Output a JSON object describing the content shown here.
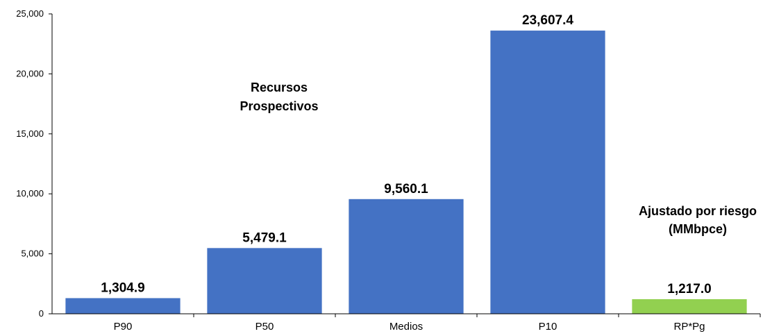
{
  "chart_data": {
    "type": "bar",
    "categories": [
      "P90",
      "P50",
      "Medios",
      "P10",
      "RP*Pg"
    ],
    "values": [
      1304.9,
      5479.1,
      9560.1,
      23607.4,
      1217.0
    ],
    "value_labels": [
      "1,304.9",
      "5,479.1",
      "9,560.1",
      "23,607.4",
      "1,217.0"
    ],
    "colors": [
      "#4472C4",
      "#4472C4",
      "#4472C4",
      "#4472C4",
      "#92D050"
    ],
    "ylim": [
      0,
      25000
    ],
    "yticks": [
      0,
      5000,
      10000,
      15000,
      20000,
      25000
    ],
    "ytick_labels": [
      "0",
      "5,000",
      "10,000",
      "15,000",
      "20,000",
      "25,000"
    ],
    "annotations": {
      "prospective": [
        "Recursos",
        "Prospectivos"
      ],
      "risk_adjusted": [
        "Ajustado por riesgo",
        "(MMbpce)"
      ]
    },
    "grid": false,
    "legend": "none"
  }
}
